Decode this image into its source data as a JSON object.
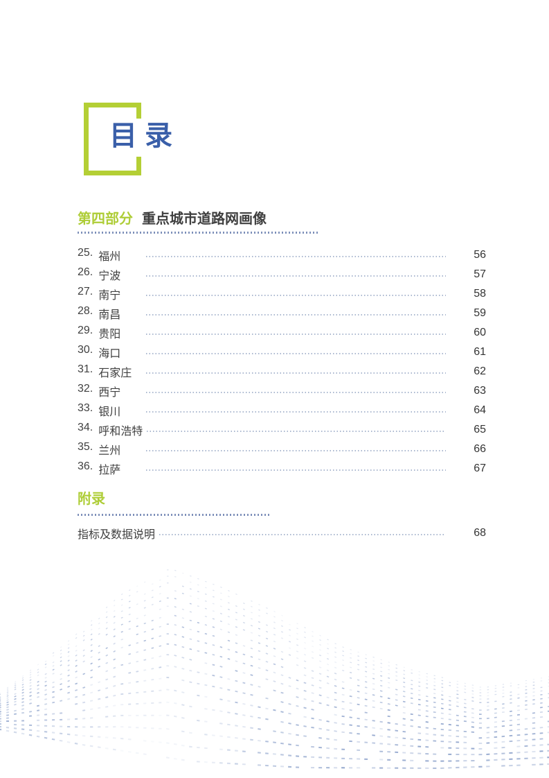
{
  "title": {
    "text": "目 录"
  },
  "section": {
    "label": "第四部分",
    "title": "重点城市道路网画像",
    "entries": [
      {
        "num": "25.",
        "name": "福州",
        "page": "56"
      },
      {
        "num": "26.",
        "name": "宁波",
        "page": "57"
      },
      {
        "num": "27.",
        "name": "南宁",
        "page": "58"
      },
      {
        "num": "28.",
        "name": "南昌",
        "page": "59"
      },
      {
        "num": "29.",
        "name": "贵阳",
        "page": "60"
      },
      {
        "num": "30.",
        "name": "海口",
        "page": "61"
      },
      {
        "num": "31.",
        "name": "石家庄",
        "page": "62"
      },
      {
        "num": "32.",
        "name": "西宁",
        "page": "63"
      },
      {
        "num": "33.",
        "name": "银川",
        "page": "64"
      },
      {
        "num": "34.",
        "name": "呼和浩特",
        "page": "65"
      },
      {
        "num": "35.",
        "name": "兰州",
        "page": "66"
      },
      {
        "num": "36.",
        "name": "拉萨",
        "page": "67"
      }
    ]
  },
  "appendix": {
    "label": "附录",
    "entries": [
      {
        "name": "指标及数据说明",
        "page": "68"
      }
    ]
  },
  "colors": {
    "accent_green": "#b4cf35",
    "title_blue": "#3a5fa9",
    "text_dark": "#3f3f3f",
    "rule_blue": "#7d8fb9",
    "leader_gray": "#aab7cf",
    "wave_blue": "#7e96c4"
  }
}
